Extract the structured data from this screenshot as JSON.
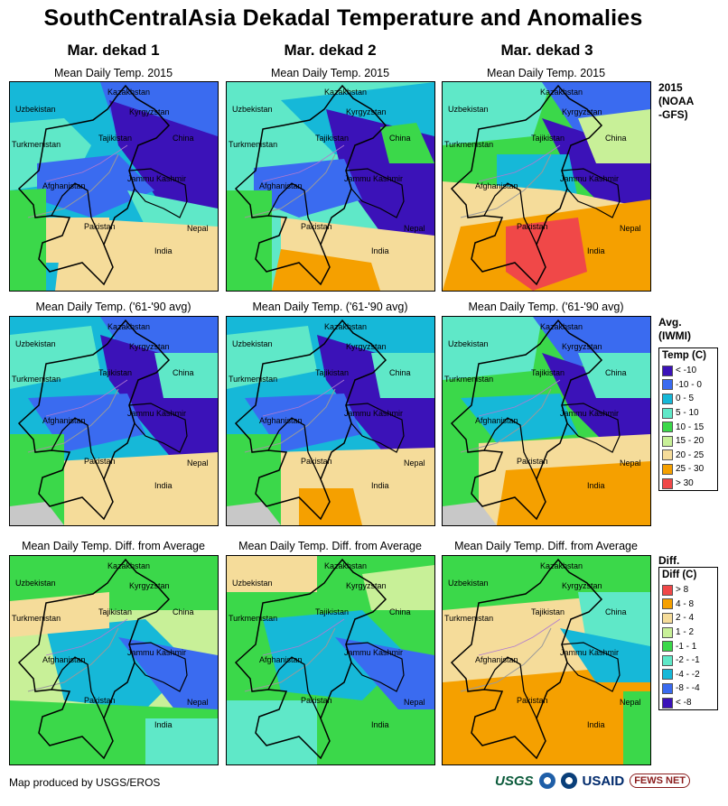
{
  "title": "SouthCentralAsia Dekadal Temperature and Anomalies",
  "columns": [
    "Mar. dekad 1",
    "Mar. dekad 2",
    "Mar. dekad 3"
  ],
  "rows": [
    {
      "panel_title": "Mean Daily Temp. 2015",
      "label_lines": [
        "2015",
        "(NOAA",
        "-GFS)"
      ],
      "legend": "temp"
    },
    {
      "panel_title": "Mean Daily Temp. ('61-'90 avg)",
      "label_lines": [
        "Avg.",
        "(IWMI)"
      ],
      "legend": "temp"
    },
    {
      "panel_title": "Mean Daily Temp. Diff. from Average",
      "label_lines": [
        "Diff."
      ],
      "legend": "diff"
    }
  ],
  "map_labels": [
    "Kazakhstan",
    "Uzbekistan",
    "Kyrgyzstan",
    "Turkmenistan",
    "Tajikistan",
    "China",
    "Afghanistan",
    "Jammu Kashmir",
    "Pakistan",
    "Nepal",
    "India"
  ],
  "legend_temp": {
    "title": "Temp (C)",
    "items": [
      {
        "label": "< -10",
        "color": "#3b12b8"
      },
      {
        "label": "-10 - 0",
        "color": "#3a6bf0"
      },
      {
        "label": "0 - 5",
        "color": "#16b8d8"
      },
      {
        "label": "5 - 10",
        "color": "#5fe8c8"
      },
      {
        "label": "10 - 15",
        "color": "#3bd84a"
      },
      {
        "label": "15 - 20",
        "color": "#c8f098"
      },
      {
        "label": "20 - 25",
        "color": "#f5dc9a"
      },
      {
        "label": "25 - 30",
        "color": "#f5a000"
      },
      {
        "label": "> 30",
        "color": "#f04848"
      }
    ]
  },
  "legend_diff": {
    "title": "Diff (C)",
    "items": [
      {
        "label": "> 8",
        "color": "#f04848"
      },
      {
        "label": "4 - 8",
        "color": "#f5a000"
      },
      {
        "label": "2 - 4",
        "color": "#f5dc9a"
      },
      {
        "label": "1 - 2",
        "color": "#c8f098"
      },
      {
        "label": "-1 - 1",
        "color": "#3bd84a"
      },
      {
        "label": "-2 - -1",
        "color": "#5fe8c8"
      },
      {
        "label": "-4 - -2",
        "color": "#16b8d8"
      },
      {
        "label": "-8 - -4",
        "color": "#3a6bf0"
      },
      {
        "label": "< -8",
        "color": "#3b12b8"
      }
    ]
  },
  "footer": "Map produced by USGS/EROS",
  "logos": {
    "usgs": "USGS",
    "usaid": "USAID",
    "fews": "FEWS NET"
  }
}
